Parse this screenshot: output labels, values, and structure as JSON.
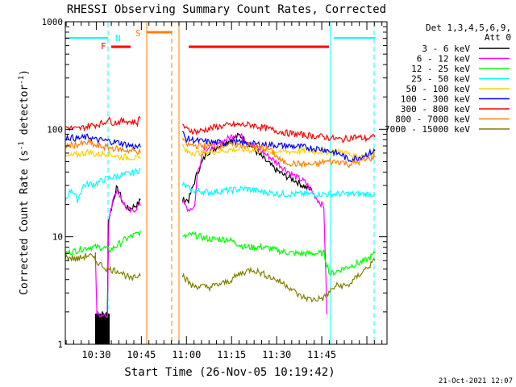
{
  "chart_data": {
    "type": "line",
    "title": "RHESSI Observing Summary Count Rates, Corrected",
    "xlabel": "Start Time (26-Nov-05 10:19:42)",
    "ylabel": "Corrected Count Rate (s",
    "ylabel_sup": "-1",
    "ylabel_mid": " detector",
    "ylabel_end": ")",
    "yscale": "log",
    "ylim": [
      1,
      1000
    ],
    "xlim_minutes": [
      0,
      107
    ],
    "y_tick_labels": [
      {
        "value": 1,
        "label": "1"
      },
      {
        "value": 10,
        "label": "10"
      },
      {
        "value": 100,
        "label": "100"
      },
      {
        "value": 1000,
        "label": "1000"
      }
    ],
    "x_tick_labels": [
      {
        "minute": 10.3,
        "label": "10:30"
      },
      {
        "minute": 25.3,
        "label": "10:45"
      },
      {
        "minute": 40.3,
        "label": "11:00"
      },
      {
        "minute": 55.3,
        "label": "11:15"
      },
      {
        "minute": 70.3,
        "label": "11:30"
      },
      {
        "minute": 85.3,
        "label": "11:45"
      }
    ],
    "legend_header": [
      "Det 1,3,4,5,6,9,",
      "Att 0"
    ],
    "series": [
      {
        "name": "3 - 6 keV",
        "color": "#000000",
        "points": [
          [
            10,
            1.9
          ],
          [
            14,
            1.9
          ],
          [
            14.3,
            14
          ],
          [
            16,
            22
          ],
          [
            17,
            28
          ],
          [
            18,
            26
          ],
          [
            19,
            21
          ],
          [
            21,
            18
          ],
          [
            24,
            20
          ],
          [
            25,
            22
          ],
          [
            41,
            22
          ],
          [
            44,
            40
          ],
          [
            47,
            60
          ],
          [
            51,
            70
          ],
          [
            55,
            80
          ],
          [
            58,
            88
          ],
          [
            61,
            75
          ],
          [
            64,
            60
          ],
          [
            67,
            50
          ],
          [
            70,
            42
          ],
          [
            73,
            37
          ],
          [
            76,
            34
          ],
          [
            79,
            30
          ],
          [
            82,
            27
          ]
        ]
      },
      {
        "name": "6 - 12 keV",
        "color": "#ff00ff",
        "points": [
          [
            10,
            7.5
          ],
          [
            10.5,
            1.9
          ],
          [
            14,
            1.9
          ],
          [
            14.5,
            14
          ],
          [
            16,
            24
          ],
          [
            17,
            27
          ],
          [
            18,
            25
          ],
          [
            20,
            19
          ],
          [
            22,
            17
          ],
          [
            25,
            20
          ],
          [
            39,
            21
          ],
          [
            41,
            18
          ],
          [
            43,
            19
          ],
          [
            44,
            40
          ],
          [
            46,
            65
          ],
          [
            50,
            70
          ],
          [
            55,
            85
          ],
          [
            57,
            92
          ],
          [
            60,
            80
          ],
          [
            64,
            66
          ],
          [
            68,
            55
          ],
          [
            72,
            45
          ],
          [
            76,
            37
          ],
          [
            80,
            32
          ],
          [
            84,
            22
          ],
          [
            86,
            19
          ],
          [
            87,
            1.9
          ]
        ]
      },
      {
        "name": "12 - 25 keV",
        "color": "#00ff00",
        "points": [
          [
            0,
            7.0
          ],
          [
            4,
            7.5
          ],
          [
            8,
            8.0
          ],
          [
            12,
            8.0
          ],
          [
            15,
            7.5
          ],
          [
            20,
            9.5
          ],
          [
            25,
            11.0
          ],
          [
            38,
            9.5
          ],
          [
            42,
            10.5
          ],
          [
            48,
            9.5
          ],
          [
            54,
            9.5
          ],
          [
            60,
            8.0
          ],
          [
            66,
            8.0
          ],
          [
            70,
            7.5
          ],
          [
            76,
            7.0
          ],
          [
            82,
            7.0
          ],
          [
            86,
            7.0
          ],
          [
            88,
            4.5
          ],
          [
            92,
            5.0
          ],
          [
            96,
            5.5
          ],
          [
            100,
            6.0
          ],
          [
            103,
            7.0
          ]
        ]
      },
      {
        "name": "25 - 50 keV",
        "color": "#00ffff",
        "points": [
          [
            0,
            22
          ],
          [
            2,
            28
          ],
          [
            4,
            22
          ],
          [
            6,
            30
          ],
          [
            8,
            31
          ],
          [
            10,
            31
          ],
          [
            12,
            33
          ],
          [
            14,
            35
          ],
          [
            18,
            37
          ],
          [
            22,
            39
          ],
          [
            25,
            42
          ],
          [
            38,
            32
          ],
          [
            42,
            27
          ],
          [
            48,
            26
          ],
          [
            54,
            27
          ],
          [
            60,
            28
          ],
          [
            66,
            26
          ],
          [
            72,
            25
          ],
          [
            78,
            25
          ],
          [
            86,
            25
          ],
          [
            92,
            25
          ],
          [
            98,
            25
          ],
          [
            103,
            25
          ]
        ]
      },
      {
        "name": "50 - 100 keV",
        "color": "#ffd000",
        "points": [
          [
            0,
            55
          ],
          [
            4,
            58
          ],
          [
            8,
            62
          ],
          [
            10,
            58
          ],
          [
            14,
            60
          ],
          [
            18,
            55
          ],
          [
            22,
            55
          ],
          [
            25,
            52
          ],
          [
            38,
            82
          ],
          [
            40,
            62
          ],
          [
            44,
            60
          ],
          [
            50,
            62
          ],
          [
            56,
            65
          ],
          [
            62,
            64
          ],
          [
            68,
            63
          ],
          [
            74,
            62
          ],
          [
            80,
            63
          ],
          [
            86,
            62
          ],
          [
            92,
            62
          ],
          [
            96,
            56
          ],
          [
            100,
            58
          ],
          [
            103,
            60
          ]
        ]
      },
      {
        "name": "100 - 300 keV",
        "color": "#0000ff",
        "points": [
          [
            0,
            85
          ],
          [
            4,
            82
          ],
          [
            8,
            85
          ],
          [
            10,
            80
          ],
          [
            14,
            78
          ],
          [
            18,
            75
          ],
          [
            22,
            70
          ],
          [
            25,
            68
          ],
          [
            38,
            105
          ],
          [
            40,
            82
          ],
          [
            44,
            78
          ],
          [
            50,
            75
          ],
          [
            56,
            76
          ],
          [
            62,
            73
          ],
          [
            68,
            72
          ],
          [
            74,
            70
          ],
          [
            80,
            68
          ],
          [
            86,
            65
          ],
          [
            92,
            58
          ],
          [
            94,
            52
          ],
          [
            98,
            55
          ],
          [
            103,
            63
          ]
        ]
      },
      {
        "name": "300 - 800 keV",
        "color": "#ff0000",
        "points": [
          [
            0,
            105
          ],
          [
            4,
            100
          ],
          [
            8,
            108
          ],
          [
            10,
            110
          ],
          [
            13,
            115
          ],
          [
            14,
            125
          ],
          [
            16,
            115
          ],
          [
            20,
            120
          ],
          [
            24,
            115
          ],
          [
            25,
            135
          ],
          [
            38,
            130
          ],
          [
            40,
            100
          ],
          [
            44,
            95
          ],
          [
            50,
            105
          ],
          [
            56,
            110
          ],
          [
            62,
            110
          ],
          [
            68,
            100
          ],
          [
            74,
            92
          ],
          [
            80,
            88
          ],
          [
            86,
            85
          ],
          [
            92,
            80
          ],
          [
            96,
            85
          ],
          [
            100,
            82
          ],
          [
            103,
            85
          ]
        ]
      },
      {
        "name": "800 - 7000 keV",
        "color": "#ff8000",
        "points": [
          [
            0,
            70
          ],
          [
            4,
            72
          ],
          [
            8,
            75
          ],
          [
            10,
            70
          ],
          [
            14,
            68
          ],
          [
            18,
            65
          ],
          [
            22,
            63
          ],
          [
            25,
            62
          ],
          [
            38,
            95
          ],
          [
            40,
            72
          ],
          [
            44,
            70
          ],
          [
            50,
            70
          ],
          [
            56,
            72
          ],
          [
            62,
            70
          ],
          [
            68,
            65
          ],
          [
            72,
            50
          ],
          [
            76,
            48
          ],
          [
            80,
            47
          ],
          [
            84,
            47
          ],
          [
            86,
            50
          ],
          [
            92,
            50
          ],
          [
            94,
            47
          ],
          [
            98,
            50
          ],
          [
            103,
            55
          ]
        ]
      },
      {
        "name": "7000 - 15000 keV",
        "color": "#808000",
        "points": [
          [
            0,
            6.5
          ],
          [
            4,
            6.2
          ],
          [
            8,
            6.8
          ],
          [
            10,
            6.0
          ],
          [
            14,
            5.0
          ],
          [
            18,
            4.8
          ],
          [
            22,
            4.0
          ],
          [
            25,
            4.5
          ],
          [
            38,
            4.8
          ],
          [
            42,
            3.5
          ],
          [
            48,
            3.4
          ],
          [
            54,
            3.8
          ],
          [
            58,
            4.5
          ],
          [
            62,
            5.0
          ],
          [
            66,
            4.5
          ],
          [
            70,
            4.0
          ],
          [
            74,
            3.5
          ],
          [
            78,
            2.8
          ],
          [
            82,
            2.6
          ],
          [
            86,
            2.7
          ],
          [
            90,
            3.5
          ],
          [
            94,
            3.5
          ],
          [
            98,
            4.5
          ],
          [
            103,
            6.0
          ]
        ]
      }
    ],
    "markers": [
      {
        "label": "S",
        "color": "#ff8000"
      },
      {
        "label": "N",
        "color": "#00ffff"
      },
      {
        "label": "F",
        "color": "#ff0000"
      }
    ]
  },
  "footer_date": "21-Oct-2021 12:07"
}
